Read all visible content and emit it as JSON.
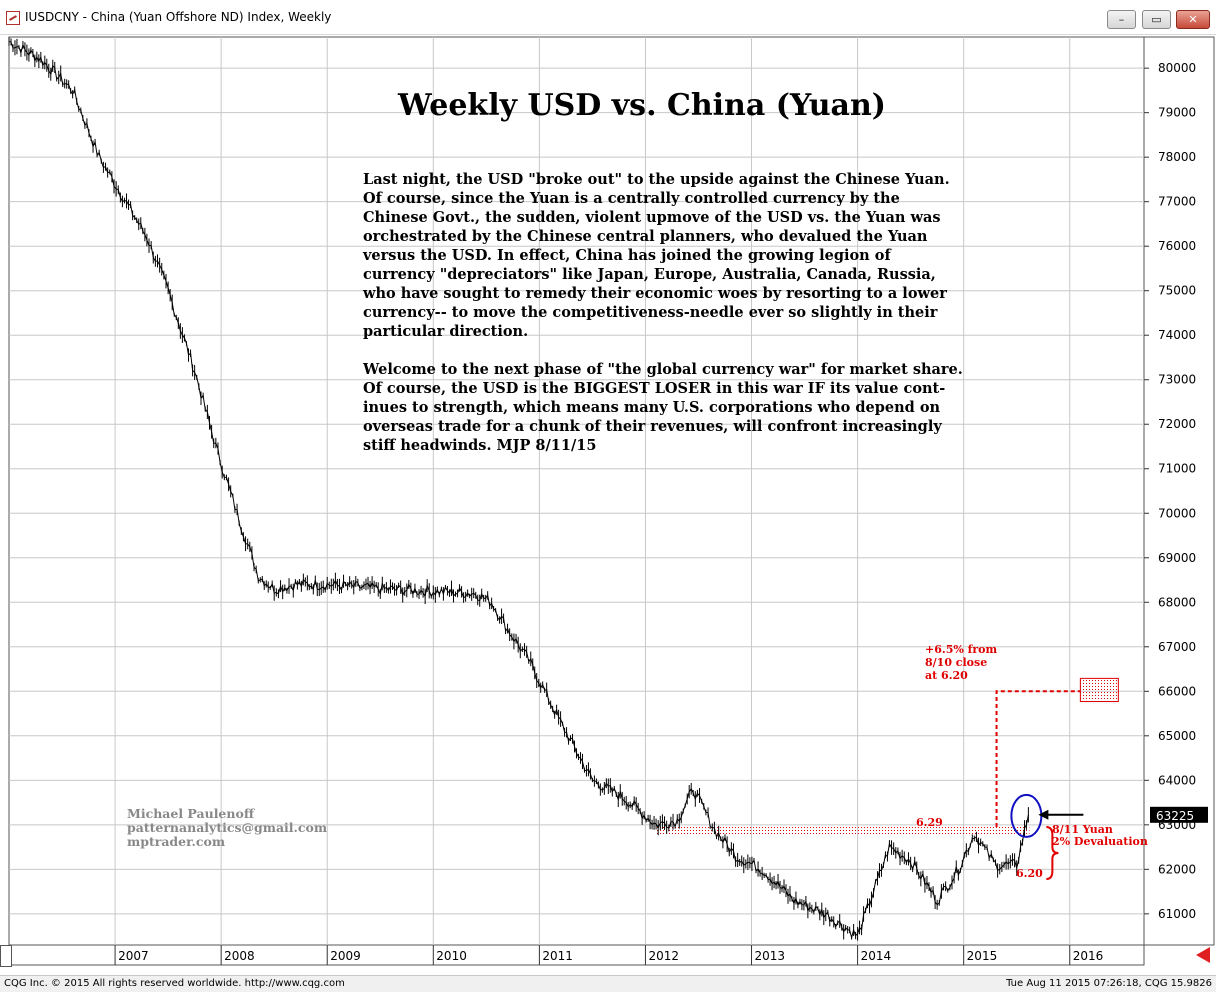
{
  "window": {
    "title": "IUSDCNY - China (Yuan Offshore ND) Index, Weekly",
    "minimize_label": "–",
    "restore_label": "▭",
    "close_label": "✕"
  },
  "status": {
    "left": "CQG Inc. © 2015 All rights reserved worldwide. http://www.cqg.com",
    "right": "Tue Aug 11 2015 07:26:18, CQG 15.9826"
  },
  "annotations": {
    "headline": "Weekly USD vs. China (Yuan)",
    "paragraph1": [
      "Last night, the USD \"broke out\" to the upside against the Chinese Yuan.",
      "Of course, since the Yuan is a centrally controlled currency by the",
      "Chinese Govt., the sudden, violent upmove of the USD vs. the Yuan was",
      "orchestrated by the Chinese central planners, who devalued the Yuan",
      "versus the USD. In effect, China has joined the growing legion of",
      "currency \"depreciators\" like Japan, Europe, Australia, Canada, Russia,",
      "who have sought to remedy their economic woes by resorting to a lower",
      "currency-- to move the competitiveness-needle ever so slightly in their",
      "particular direction."
    ],
    "paragraph2": [
      "Welcome to the next phase of \"the global currency war\" for market share.",
      "Of course, the USD is the BIGGEST LOSER in this war IF its value cont-",
      "inues to strength, which means many U.S. corporations who depend on",
      "overseas trade for a chunk of their revenues, will confront increasingly",
      "stiff headwinds.  MJP 8/11/15"
    ],
    "author": [
      "Michael Paulenoff",
      "patternanalytics@gmail.com",
      "mptrader.com"
    ],
    "target_note": [
      "+6.5% from",
      "8/10 close",
      "at 6.20"
    ],
    "level_629": "6.29",
    "level_620": "6.20",
    "devaluation_note": [
      "8/11 Yuan",
      "2% Devaluation"
    ],
    "last_price_tag": "63225"
  },
  "colors": {
    "annotation_red": "#e00000",
    "circle_blue": "#1010c0",
    "price_tag_bg": "#000000",
    "grid": "#c8c8c8"
  },
  "chart_data": {
    "type": "line",
    "ylim": [
      60300,
      80700
    ],
    "yticks": [
      61000,
      62000,
      63000,
      64000,
      65000,
      66000,
      67000,
      68000,
      69000,
      70000,
      71000,
      72000,
      73000,
      74000,
      75000,
      76000,
      77000,
      78000,
      79000,
      80000
    ],
    "ytick_labels": [
      "61000",
      "62000",
      "63000",
      "64000",
      "65000",
      "66000",
      "67000",
      "68000",
      "69000",
      "70000",
      "71000",
      "72000",
      "73000",
      "74000",
      "75000",
      "76000",
      "77000",
      "78000",
      "79000",
      "80000"
    ],
    "xlim": [
      2006.0,
      2016.7
    ],
    "xticks": [
      2007,
      2008,
      2009,
      2010,
      2011,
      2012,
      2013,
      2014,
      2015,
      2016
    ],
    "xtick_labels": [
      "2007",
      "2008",
      "2009",
      "2010",
      "2011",
      "2012",
      "2013",
      "2014",
      "2015",
      "2016"
    ],
    "grid": true,
    "series": [
      {
        "x": [
          2006.0,
          2006.3,
          2006.6,
          2006.85,
          2007.05,
          2007.3,
          2007.5,
          2007.75,
          2007.95,
          2008.15,
          2008.35,
          2008.5,
          2008.7,
          2009.0,
          2009.5,
          2010.0,
          2010.4,
          2010.55,
          2010.7,
          2010.9,
          2011.2,
          2011.5,
          2011.8,
          2012.1,
          2012.3,
          2012.45,
          2012.65,
          2012.85,
          2013.1,
          2013.4,
          2013.7,
          2014.0,
          2014.15,
          2014.3,
          2014.5,
          2014.75,
          2014.95,
          2015.1,
          2015.3,
          2015.5,
          2015.61
        ],
        "y": [
          80600,
          80200,
          79500,
          78000,
          77200,
          76200,
          75000,
          73200,
          71500,
          70000,
          68600,
          68300,
          68400,
          68400,
          68300,
          68250,
          68200,
          68000,
          67400,
          66700,
          65300,
          64000,
          63600,
          63000,
          63100,
          63800,
          62900,
          62300,
          62000,
          61300,
          61000,
          60500,
          61500,
          62500,
          62200,
          61300,
          62000,
          62800,
          62100,
          62100,
          63225
        ]
      }
    ],
    "annotations": {
      "resistance_zone": [
        62750,
        62950
      ],
      "target_zone": [
        65950,
        66200
      ],
      "last_close": 62000,
      "devaluation_pct": "2%",
      "target_pct": "+6.5%"
    }
  }
}
